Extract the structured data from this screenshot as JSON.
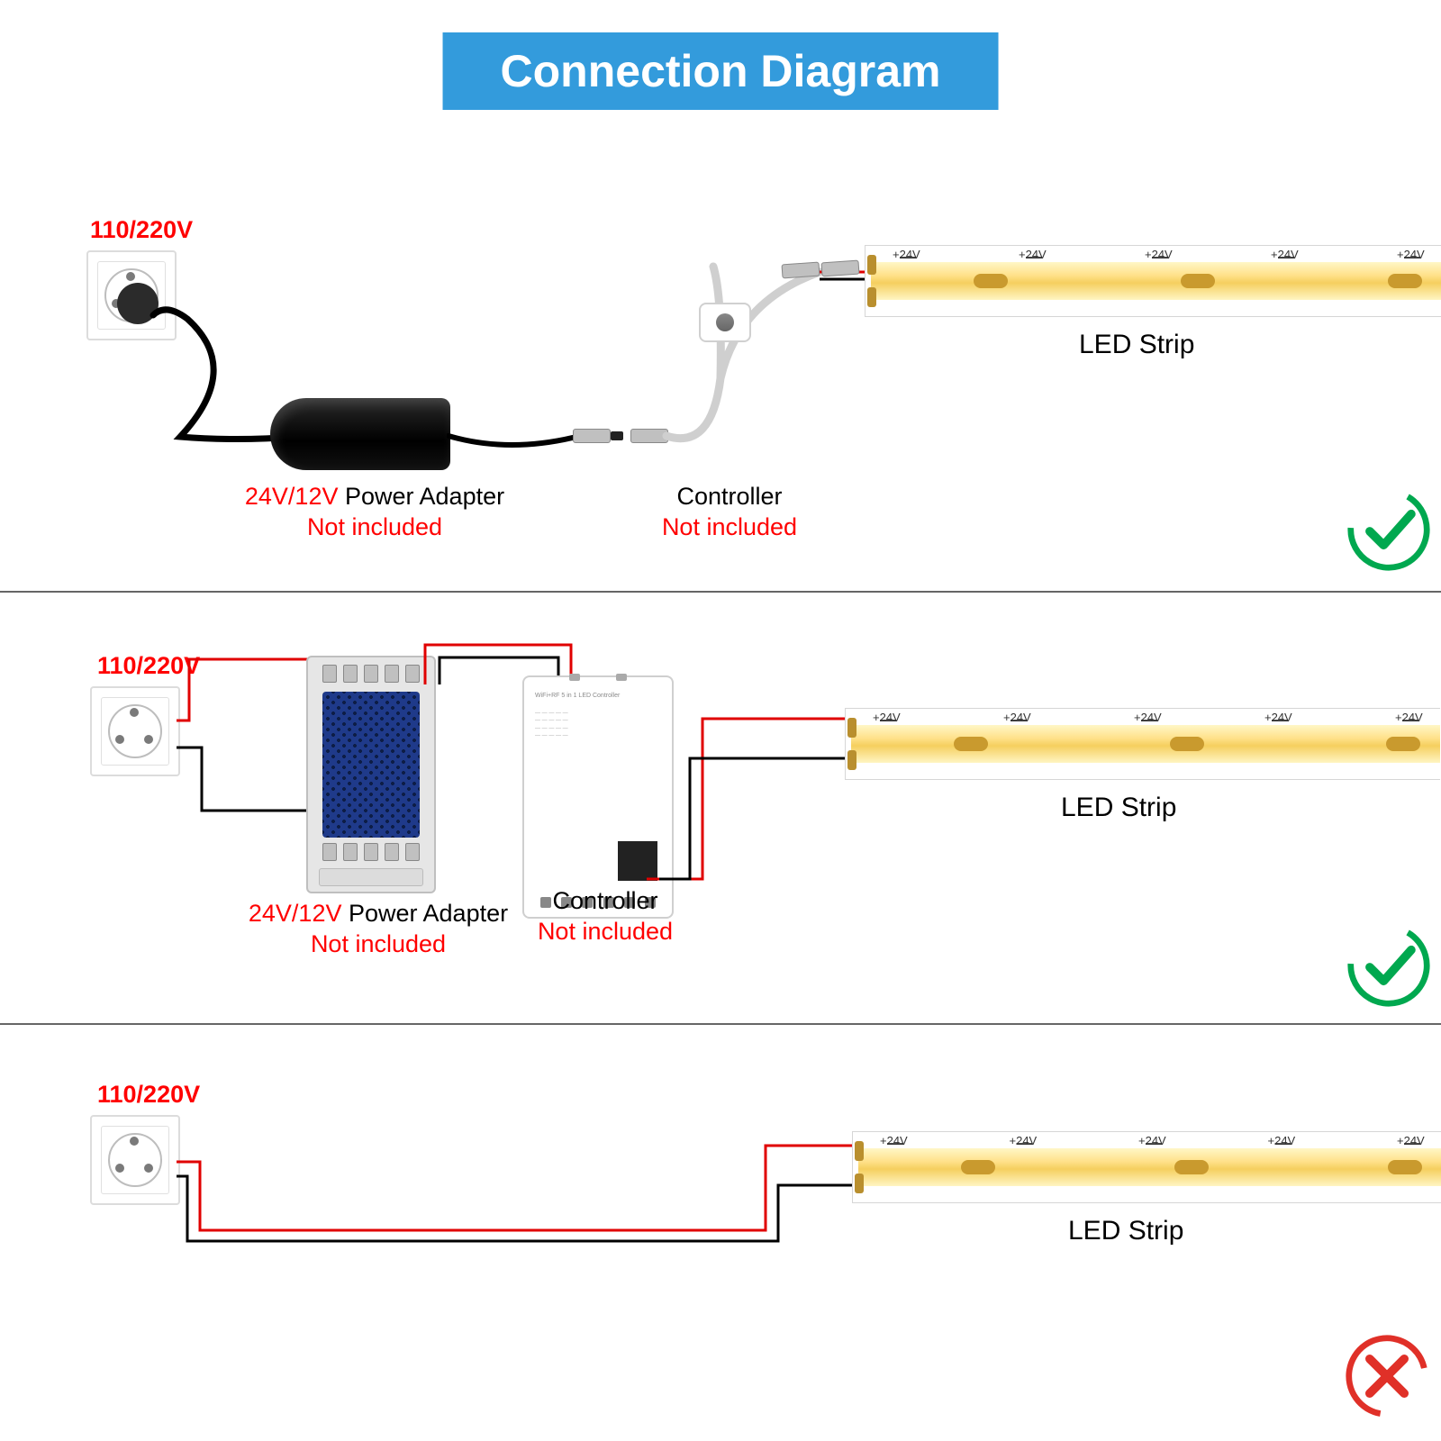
{
  "title": {
    "text": "Connection Diagram",
    "bg": "#339bdc",
    "color": "#ffffff"
  },
  "colors": {
    "red": "#ff0000",
    "black": "#000000",
    "green": "#00a84f",
    "redX": "#e03028",
    "divider": "#666666",
    "stripYellow": "#f5cf5f"
  },
  "voltage": "110/220V",
  "adapter": {
    "volt": "24V/12V",
    "name": " Power Adapter",
    "note": "Not included",
    "volt_color": "#ff0000",
    "name_color": "#000000",
    "note_color": "#ff0000"
  },
  "controller": {
    "name": "Controller",
    "note": "Not included",
    "name_color": "#000000",
    "note_color": "#ff0000"
  },
  "strip": {
    "name": "LED Strip",
    "marks": [
      "+24V",
      "+24V",
      "+24V",
      "+24V",
      "+24V"
    ],
    "minus": "—"
  },
  "sections": {
    "s1": {
      "status": "ok"
    },
    "s2": {
      "status": "ok"
    },
    "s3": {
      "status": "bad"
    }
  }
}
